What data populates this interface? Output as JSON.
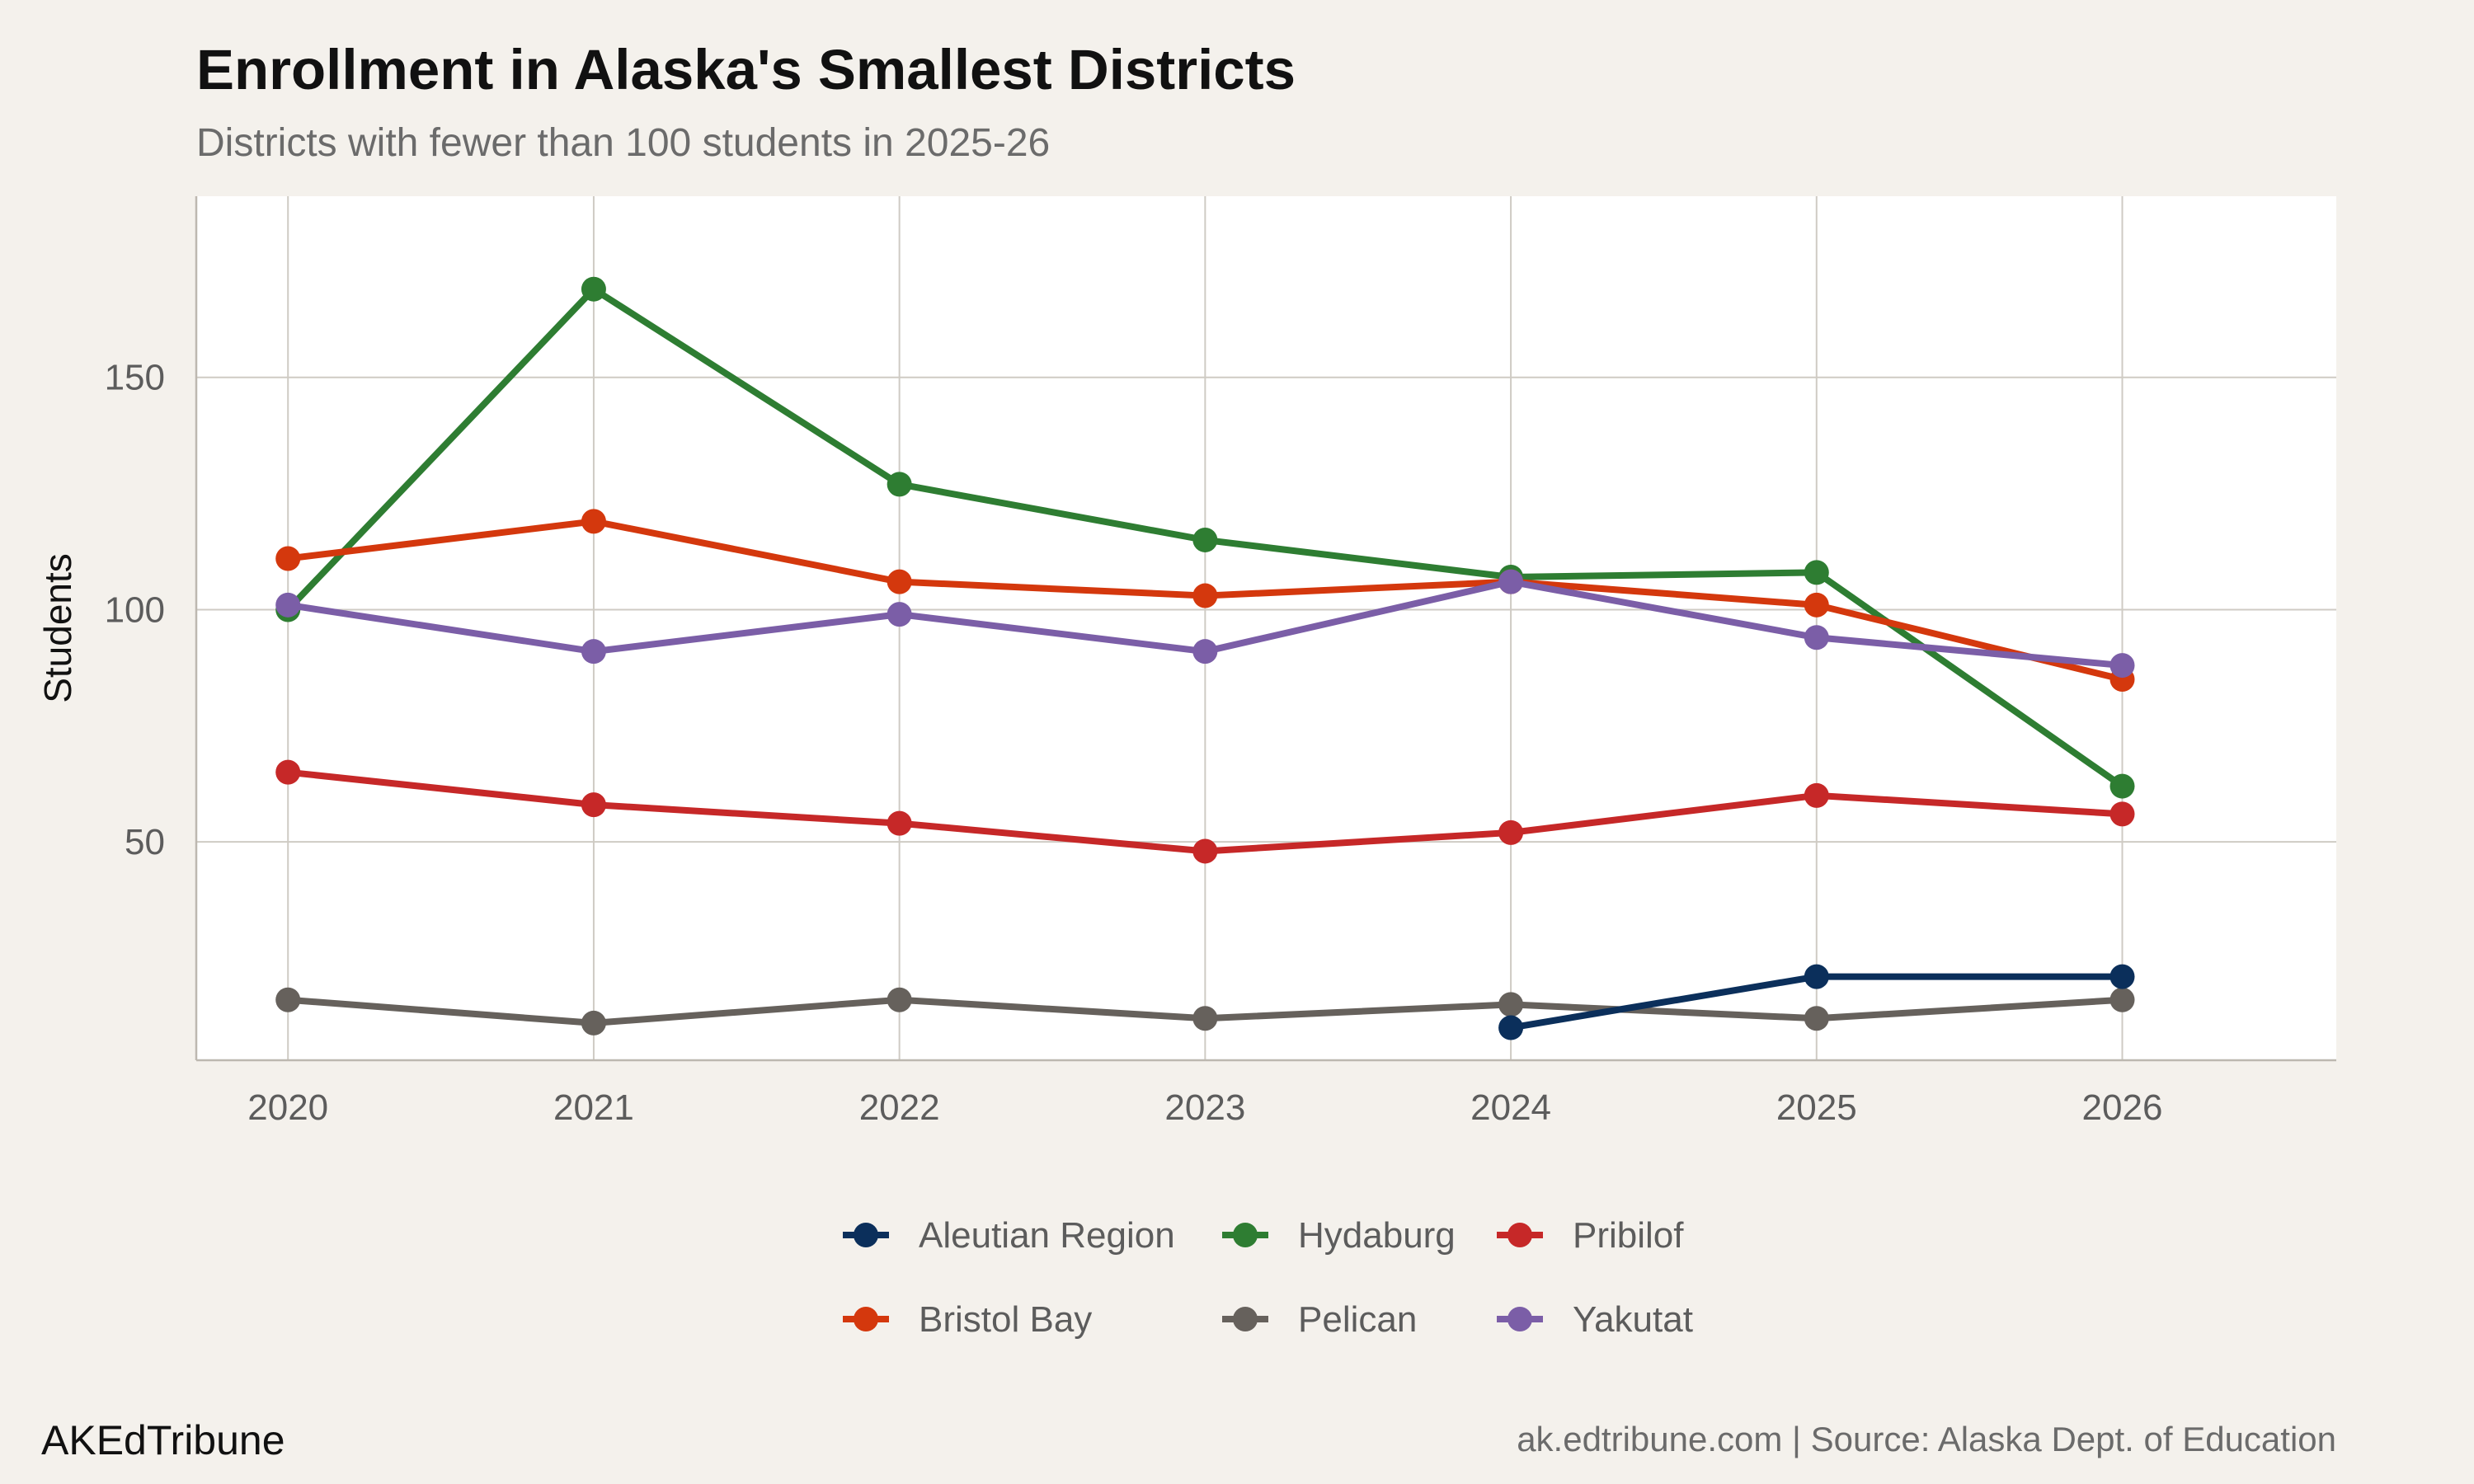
{
  "chart_data": {
    "type": "line",
    "title": "Enrollment in Alaska's Smallest Districts",
    "subtitle": "Districts with fewer than 100 students in 2025-26",
    "xlabel": "",
    "ylabel": "Students",
    "x": [
      2020,
      2021,
      2022,
      2023,
      2024,
      2025,
      2026
    ],
    "x_ticks": [
      "2020",
      "2021",
      "2022",
      "2023",
      "2024",
      "2025",
      "2026"
    ],
    "xlim": [
      2019.7,
      2026.7
    ],
    "ylim": [
      3,
      189
    ],
    "y_ticks": [
      50,
      100,
      150
    ],
    "y_tick_labels": [
      "50",
      "100",
      "150"
    ],
    "grid": true,
    "legend_position": "bottom",
    "series": [
      {
        "name": "Aleutian Region",
        "color": "#0b2f5b",
        "values": [
          null,
          null,
          null,
          null,
          10,
          21,
          21
        ]
      },
      {
        "name": "Bristol Bay",
        "color": "#d4380d",
        "values": [
          111,
          119,
          106,
          103,
          106,
          101,
          85
        ]
      },
      {
        "name": "Hydaburg",
        "color": "#2e7d32",
        "values": [
          100,
          169,
          127,
          115,
          107,
          108,
          62
        ]
      },
      {
        "name": "Pelican",
        "color": "#66615c",
        "values": [
          16,
          11,
          16,
          12,
          15,
          12,
          16
        ]
      },
      {
        "name": "Pribilof",
        "color": "#c62828",
        "values": [
          65,
          58,
          54,
          48,
          52,
          60,
          56
        ]
      },
      {
        "name": "Yakutat",
        "color": "#7b5ea7",
        "values": [
          101,
          91,
          99,
          91,
          106,
          94,
          88
        ]
      }
    ]
  },
  "footer": {
    "brand": "AKEdTribune",
    "source": "ak.edtribune.com | Source: Alaska Dept. of Education"
  }
}
